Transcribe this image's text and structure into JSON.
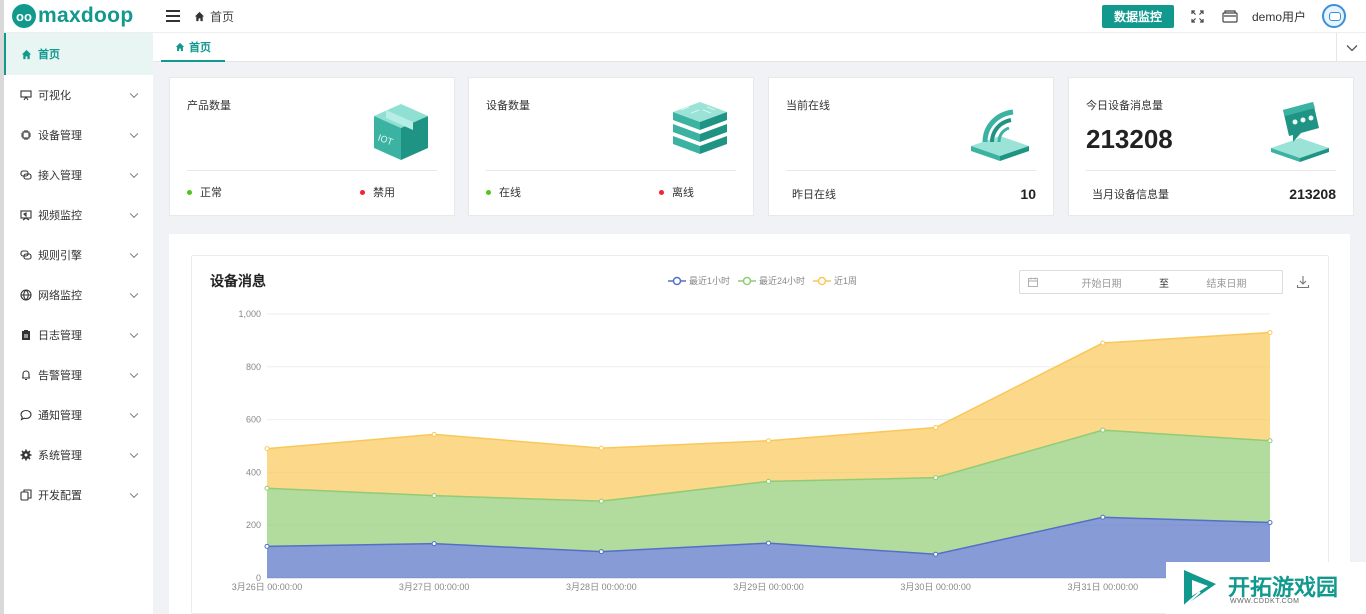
{
  "app": {
    "logo": "maxdoop",
    "logo_mark": "oo"
  },
  "header": {
    "breadcrumb": "首页",
    "monitor_button": "数据监控",
    "username": "demo用户"
  },
  "sidebar": {
    "items": [
      {
        "label": "首页",
        "icon": "home-icon"
      },
      {
        "label": "可视化",
        "icon": "monitor-icon"
      },
      {
        "label": "设备管理",
        "icon": "chip-icon"
      },
      {
        "label": "接入管理",
        "icon": "link-icon"
      },
      {
        "label": "视频监控",
        "icon": "video-icon"
      },
      {
        "label": "规则引擎",
        "icon": "rule-icon"
      },
      {
        "label": "网络监控",
        "icon": "globe-icon"
      },
      {
        "label": "日志管理",
        "icon": "clipboard-icon"
      },
      {
        "label": "告警管理",
        "icon": "bell-icon"
      },
      {
        "label": "通知管理",
        "icon": "chat-icon"
      },
      {
        "label": "系统管理",
        "icon": "gear-icon"
      },
      {
        "label": "开发配置",
        "icon": "copy-icon"
      }
    ]
  },
  "tabs": [
    {
      "label": "首页"
    }
  ],
  "cards": [
    {
      "title": "产品数量",
      "value": "",
      "icon": "iot-box-icon",
      "foot_a": "正常",
      "foot_b": "禁用"
    },
    {
      "title": "设备数量",
      "value": "",
      "icon": "server-stack-icon",
      "foot_a": "在线",
      "foot_b": "离线"
    },
    {
      "title": "当前在线",
      "value": "",
      "icon": "wifi-router-icon",
      "foot_label": "昨日在线",
      "foot_value": "10"
    },
    {
      "title": "今日设备消息量",
      "value": "213208",
      "icon": "message-device-icon",
      "foot_label": "当月设备信息量",
      "foot_value": "213208"
    }
  ],
  "colors": {
    "accent": "#11998e",
    "ok": "#52c41a",
    "bad": "#f5222d"
  },
  "panel": {
    "title": "设备消息",
    "start_placeholder": "开始日期",
    "separator": "至",
    "end_placeholder": "结束日期"
  },
  "chart_data": {
    "type": "area",
    "stacked": true,
    "x": [
      "3月26日 00:00:00",
      "3月27日 00:00:00",
      "3月28日 00:00:00",
      "3月29日 00:00:00",
      "3月30日 00:00:00",
      "3月31日 00:00:00",
      "4月1日 00:00:00"
    ],
    "y_ticks": [
      "0",
      "200",
      "400",
      "600",
      "800",
      "1,000"
    ],
    "ylim": [
      0,
      1000
    ],
    "legend_position": "top-center",
    "series": [
      {
        "name": "最近1小时",
        "color": "#5470c6",
        "values": [
          120,
          130,
          100,
          132,
          90,
          230,
          210
        ]
      },
      {
        "name": "最近24小时",
        "color": "#91cc75",
        "values": [
          220,
          182,
          191,
          234,
          290,
          330,
          310
        ]
      },
      {
        "name": "近1周",
        "color": "#fac858",
        "values": [
          150,
          232,
          201,
          154,
          190,
          330,
          410
        ]
      }
    ]
  },
  "watermark": {
    "title": "开拓游戏园",
    "subtitle": "WWW.CDDKT.COM"
  }
}
